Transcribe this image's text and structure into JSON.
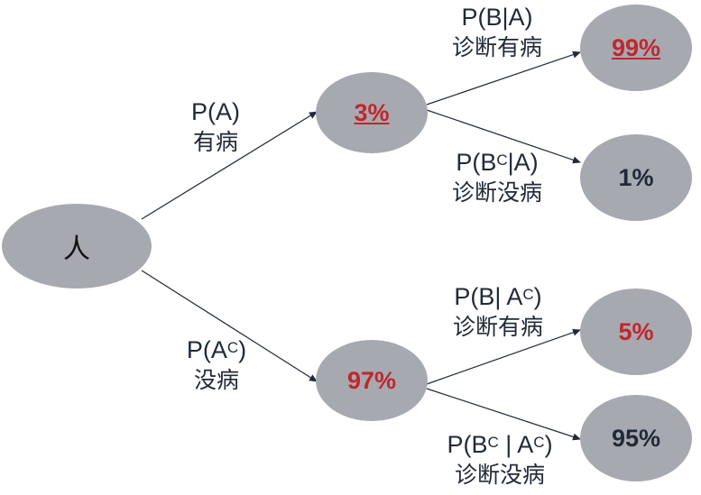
{
  "nodes": {
    "root": "人",
    "a": "3%",
    "ac": "97%",
    "b_a": "99%",
    "bc_a": "1%",
    "b_ac": "5%",
    "bc_ac": "95%"
  },
  "edges": {
    "pa": {
      "prob": "P(A)",
      "desc": "有病"
    },
    "pac": {
      "prob_pre": "P(A",
      "sup": "C",
      "prob_post": ")",
      "desc": "没病"
    },
    "pba": {
      "prob": "P(B|A)",
      "desc": "诊断有病"
    },
    "pbca": {
      "prob_pre": "P(B",
      "sup": "C",
      "prob_post": "|A)",
      "desc": "诊断没病"
    },
    "pbac": {
      "prob_pre": "P(B| A",
      "sup": "C",
      "prob_post": ")",
      "desc": "诊断有病"
    },
    "pbcac": {
      "prob_pre": "P(B",
      "sup": "C",
      "prob_mid": " | A",
      "sup2": "C",
      "prob_post": ")",
      "desc": "诊断没病"
    }
  },
  "colors": {
    "node_fill": "#a7a9b1",
    "text": "#222a38",
    "highlight": "#c0272d"
  }
}
